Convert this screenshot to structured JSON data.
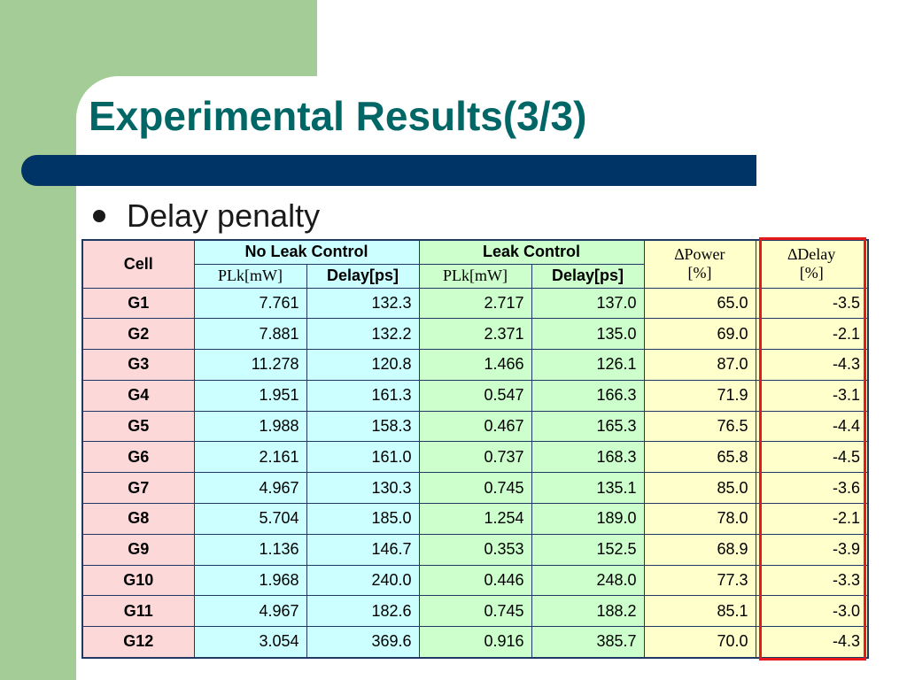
{
  "slide": {
    "title": "Experimental Results(3/3)",
    "bullet": "Delay penalty"
  },
  "table": {
    "header": {
      "cell": "Cell",
      "no_leak_control": "No Leak Control",
      "leak_control": "Leak Control",
      "plk_mw": "PLk[mW]",
      "delay_ps": "Delay[ps]",
      "dpower_line1": "∆Power",
      "dpower_line2": "[%]",
      "ddelay_line1": "∆Delay",
      "ddelay_line2": "[%]"
    },
    "rows": [
      [
        "G1",
        "7.761",
        "132.3",
        "2.717",
        "137.0",
        "65.0",
        "-3.5"
      ],
      [
        "G2",
        "7.881",
        "132.2",
        "2.371",
        "135.0",
        "69.0",
        "-2.1"
      ],
      [
        "G3",
        "11.278",
        "120.8",
        "1.466",
        "126.1",
        "87.0",
        "-4.3"
      ],
      [
        "G4",
        "1.951",
        "161.3",
        "0.547",
        "166.3",
        "71.9",
        "-3.1"
      ],
      [
        "G5",
        "1.988",
        "158.3",
        "0.467",
        "165.3",
        "76.5",
        "-4.4"
      ],
      [
        "G6",
        "2.161",
        "161.0",
        "0.737",
        "168.3",
        "65.8",
        "-4.5"
      ],
      [
        "G7",
        "4.967",
        "130.3",
        "0.745",
        "135.1",
        "85.0",
        "-3.6"
      ],
      [
        "G8",
        "5.704",
        "185.0",
        "1.254",
        "189.0",
        "78.0",
        "-2.1"
      ],
      [
        "G9",
        "1.136",
        "146.7",
        "0.353",
        "152.5",
        "68.9",
        "-3.9"
      ],
      [
        "G10",
        "1.968",
        "240.0",
        "0.446",
        "248.0",
        "77.3",
        "-3.3"
      ],
      [
        "G11",
        "4.967",
        "182.6",
        "0.745",
        "188.2",
        "85.1",
        "-3.0"
      ],
      [
        "G12",
        "3.054",
        "369.6",
        "0.916",
        "385.7",
        "70.0",
        "-4.3"
      ]
    ]
  },
  "colors": {
    "title": "#006666",
    "title_bar": "#003366",
    "side_green": "#a3cc97",
    "cell_column": "#fdd8d8",
    "no_leak_columns": "#ccffff",
    "leak_columns": "#ccffcc",
    "delta_columns": "#ffffcc",
    "highlight_box": "#e61a1a"
  },
  "icons": {
    "bullet": "bullet-dot-icon"
  }
}
